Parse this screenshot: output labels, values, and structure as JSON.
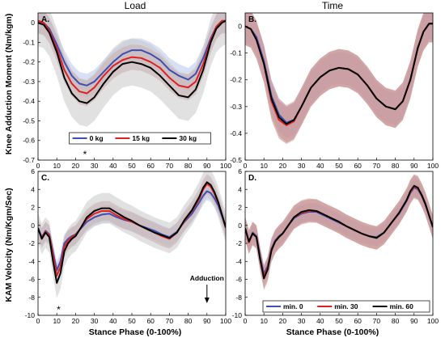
{
  "column_titles": {
    "left": "Load",
    "right": "Time"
  },
  "ylabel_top": "Knee Adduction Moment (Nm/kgm)",
  "ylabel_bottom": "KAM Velocity (Nm/Kgm/Sec)",
  "xlabel": "Stance Phase (0-100%)",
  "colors": {
    "blue": "#3c4fb4",
    "red": "#e02020",
    "black": "#000000",
    "band_blue": "#b8c6ec",
    "band_red": "#c88f8f",
    "band_gray": "#c8c8c8"
  },
  "chart_data": [
    {
      "panel": "A.",
      "type": "line",
      "xlim": [
        0,
        100
      ],
      "ylim": [
        -0.7,
        0.05
      ],
      "xticks": [
        "0",
        "10",
        "20",
        "30",
        "40",
        "50",
        "60",
        "70",
        "80",
        "90",
        "100"
      ],
      "yticks": [
        "0",
        "-0.1",
        "-0.2",
        "-0.3",
        "-0.4",
        "-0.5",
        "-0.6",
        "-0.7"
      ],
      "annotation": "*",
      "annotation_x": 25,
      "legend_position": "bottom-center",
      "series": [
        {
          "name": "0 kg",
          "color": "blue",
          "band": "band_blue",
          "band_halfwidth": 0.06,
          "x": [
            0,
            3,
            6,
            10,
            14,
            18,
            22,
            26,
            30,
            35,
            40,
            45,
            50,
            55,
            60,
            65,
            70,
            75,
            80,
            84,
            88,
            92,
            95,
            98,
            100
          ],
          "y": [
            0.01,
            0.0,
            -0.03,
            -0.11,
            -0.2,
            -0.27,
            -0.31,
            -0.32,
            -0.3,
            -0.25,
            -0.2,
            -0.16,
            -0.14,
            -0.14,
            -0.16,
            -0.19,
            -0.24,
            -0.27,
            -0.29,
            -0.26,
            -0.18,
            -0.08,
            -0.02,
            0.01,
            0.01
          ]
        },
        {
          "name": "15 kg",
          "color": "red",
          "band": "band_red",
          "band_halfwidth": 0.065,
          "x": [
            0,
            3,
            6,
            10,
            14,
            18,
            22,
            26,
            30,
            35,
            40,
            45,
            50,
            55,
            60,
            65,
            70,
            75,
            80,
            84,
            88,
            92,
            95,
            98,
            100
          ],
          "y": [
            0.01,
            0.0,
            -0.04,
            -0.13,
            -0.24,
            -0.31,
            -0.35,
            -0.36,
            -0.33,
            -0.27,
            -0.22,
            -0.19,
            -0.175,
            -0.18,
            -0.2,
            -0.23,
            -0.28,
            -0.32,
            -0.33,
            -0.3,
            -0.21,
            -0.09,
            -0.02,
            0.01,
            0.01
          ]
        },
        {
          "name": "30 kg",
          "color": "black",
          "band": "band_gray",
          "band_halfwidth": 0.12,
          "x": [
            0,
            3,
            6,
            10,
            14,
            18,
            22,
            26,
            30,
            35,
            40,
            45,
            50,
            55,
            60,
            65,
            70,
            75,
            80,
            84,
            88,
            92,
            95,
            98,
            100
          ],
          "y": [
            0.0,
            -0.01,
            -0.05,
            -0.15,
            -0.28,
            -0.36,
            -0.4,
            -0.41,
            -0.38,
            -0.31,
            -0.25,
            -0.21,
            -0.2,
            -0.21,
            -0.23,
            -0.27,
            -0.32,
            -0.37,
            -0.38,
            -0.34,
            -0.24,
            -0.1,
            -0.03,
            0.0,
            0.01
          ]
        }
      ]
    },
    {
      "panel": "B.",
      "type": "line",
      "xlim": [
        0,
        100
      ],
      "ylim": [
        -0.5,
        0.05
      ],
      "xticks": [
        "0",
        "10",
        "20",
        "30",
        "40",
        "50",
        "60",
        "70",
        "80",
        "90",
        "100"
      ],
      "yticks": [
        "0",
        "-0.1",
        "-0.2",
        "-0.3",
        "-0.4",
        "-0.5"
      ],
      "series": [
        {
          "name": "min. 0",
          "color": "blue",
          "band": "band_blue",
          "band_halfwidth": 0.06,
          "x": [
            0,
            3,
            6,
            10,
            14,
            18,
            22,
            26,
            30,
            35,
            40,
            45,
            50,
            55,
            60,
            65,
            70,
            75,
            80,
            84,
            88,
            92,
            95,
            98,
            100
          ],
          "y": [
            0.0,
            -0.01,
            -0.04,
            -0.13,
            -0.26,
            -0.33,
            -0.36,
            -0.35,
            -0.3,
            -0.23,
            -0.19,
            -0.165,
            -0.155,
            -0.16,
            -0.18,
            -0.22,
            -0.27,
            -0.3,
            -0.31,
            -0.28,
            -0.2,
            -0.08,
            -0.02,
            0.01,
            0.01
          ]
        },
        {
          "name": "min. 30",
          "color": "red",
          "band": "band_red",
          "band_halfwidth": 0.07,
          "x": [
            0,
            3,
            6,
            10,
            14,
            18,
            22,
            26,
            30,
            35,
            40,
            45,
            50,
            55,
            60,
            65,
            70,
            75,
            80,
            84,
            88,
            92,
            95,
            98,
            100
          ],
          "y": [
            0.0,
            -0.01,
            -0.05,
            -0.14,
            -0.28,
            -0.35,
            -0.37,
            -0.355,
            -0.3,
            -0.23,
            -0.19,
            -0.165,
            -0.155,
            -0.16,
            -0.18,
            -0.22,
            -0.27,
            -0.3,
            -0.31,
            -0.28,
            -0.2,
            -0.08,
            -0.02,
            0.01,
            0.01
          ]
        },
        {
          "name": "min. 60",
          "color": "black",
          "band": "band_red",
          "band_halfwidth": 0.07,
          "x": [
            0,
            3,
            6,
            10,
            14,
            18,
            22,
            26,
            30,
            35,
            40,
            45,
            50,
            55,
            60,
            65,
            70,
            75,
            80,
            84,
            88,
            92,
            95,
            98,
            100
          ],
          "y": [
            0.0,
            -0.01,
            -0.05,
            -0.14,
            -0.27,
            -0.34,
            -0.365,
            -0.35,
            -0.3,
            -0.23,
            -0.19,
            -0.165,
            -0.155,
            -0.16,
            -0.18,
            -0.22,
            -0.27,
            -0.3,
            -0.31,
            -0.28,
            -0.2,
            -0.08,
            -0.02,
            0.01,
            0.01
          ]
        }
      ]
    },
    {
      "panel": "C.",
      "type": "line",
      "xlim": [
        0,
        100
      ],
      "ylim": [
        -10,
        6
      ],
      "xticks": [
        "0",
        "10",
        "20",
        "30",
        "40",
        "50",
        "60",
        "70",
        "80",
        "90",
        "100"
      ],
      "yticks": [
        "6",
        "4",
        "2",
        "0",
        "-2",
        "-4",
        "-6",
        "-8",
        "-10"
      ],
      "annotation": "*",
      "annotation_x": 11,
      "annotation_text": "Adduction",
      "annotation_text_x": 90,
      "series": [
        {
          "name": "0 kg",
          "color": "blue",
          "band": "band_blue",
          "band_halfwidth": 1.0,
          "x": [
            0,
            2,
            4,
            6,
            8,
            10,
            12,
            14,
            16,
            18,
            20,
            23,
            26,
            30,
            34,
            38,
            42,
            46,
            50,
            54,
            58,
            62,
            66,
            70,
            74,
            78,
            82,
            86,
            88,
            90,
            92,
            94,
            96,
            98,
            100
          ],
          "y": [
            -0.3,
            -1.3,
            -0.6,
            -1.0,
            -3.0,
            -5.0,
            -4.0,
            -2.0,
            -1.5,
            -1.2,
            -1.0,
            -0.3,
            0.4,
            0.9,
            1.2,
            1.3,
            0.9,
            0.6,
            0.4,
            0.0,
            -0.3,
            -0.6,
            -1.0,
            -1.3,
            -0.7,
            0.4,
            1.3,
            2.6,
            3.3,
            3.8,
            3.6,
            3.0,
            2.2,
            1.0,
            -0.3
          ]
        },
        {
          "name": "15 kg",
          "color": "red",
          "band": "band_red",
          "band_halfwidth": 1.1,
          "x": [
            0,
            2,
            4,
            6,
            8,
            10,
            12,
            14,
            16,
            18,
            20,
            23,
            26,
            30,
            34,
            38,
            42,
            46,
            50,
            54,
            58,
            62,
            66,
            70,
            74,
            78,
            82,
            86,
            88,
            90,
            92,
            94,
            96,
            98,
            100
          ],
          "y": [
            -0.4,
            -1.4,
            -0.7,
            -1.1,
            -3.3,
            -5.6,
            -4.6,
            -2.4,
            -1.7,
            -1.3,
            -1.1,
            -0.2,
            0.7,
            1.3,
            1.6,
            1.6,
            1.1,
            0.7,
            0.4,
            0.0,
            -0.4,
            -0.8,
            -1.2,
            -1.5,
            -0.8,
            0.5,
            1.6,
            3.0,
            4.0,
            4.6,
            4.3,
            3.5,
            2.5,
            1.2,
            -0.3
          ]
        },
        {
          "name": "30 kg",
          "color": "black",
          "band": "band_gray",
          "band_halfwidth": 1.7,
          "x": [
            0,
            2,
            4,
            6,
            8,
            10,
            12,
            14,
            16,
            18,
            20,
            23,
            26,
            30,
            34,
            38,
            42,
            46,
            50,
            54,
            58,
            62,
            66,
            70,
            74,
            78,
            82,
            86,
            88,
            90,
            92,
            94,
            96,
            98,
            100
          ],
          "y": [
            -0.3,
            -1.5,
            -0.8,
            -1.3,
            -4.0,
            -6.4,
            -5.3,
            -2.9,
            -2.0,
            -1.5,
            -1.2,
            -0.2,
            0.9,
            1.6,
            1.9,
            1.9,
            1.4,
            0.9,
            0.5,
            0.0,
            -0.4,
            -0.8,
            -1.1,
            -1.4,
            -0.8,
            0.6,
            1.7,
            3.2,
            4.2,
            4.8,
            4.5,
            3.7,
            2.6,
            1.2,
            -0.2
          ]
        }
      ]
    },
    {
      "panel": "D.",
      "type": "line",
      "xlim": [
        0,
        100
      ],
      "ylim": [
        -10,
        6
      ],
      "xticks": [
        "0",
        "10",
        "20",
        "30",
        "40",
        "50",
        "60",
        "70",
        "80",
        "90",
        "100"
      ],
      "yticks": [
        "6",
        "4",
        "2",
        "0",
        "-2",
        "-4",
        "-6",
        "-8",
        "-10"
      ],
      "legend_position": "bottom-right",
      "series": [
        {
          "name": "min. 0",
          "color": "blue",
          "band": "band_blue",
          "band_halfwidth": 1.0,
          "x": [
            0,
            2,
            4,
            6,
            8,
            10,
            12,
            14,
            16,
            18,
            20,
            23,
            26,
            30,
            34,
            38,
            42,
            46,
            50,
            54,
            58,
            62,
            66,
            70,
            74,
            78,
            82,
            86,
            88,
            90,
            92,
            94,
            96,
            98,
            100
          ],
          "y": [
            -0.3,
            -1.8,
            -0.8,
            -1.2,
            -3.5,
            -5.4,
            -4.5,
            -2.6,
            -1.7,
            -1.2,
            -0.9,
            0.0,
            0.8,
            1.3,
            1.5,
            1.5,
            1.1,
            0.7,
            0.3,
            -0.1,
            -0.5,
            -0.9,
            -1.2,
            -1.3,
            -0.8,
            0.3,
            1.3,
            2.7,
            3.6,
            4.2,
            4.0,
            3.3,
            2.3,
            1.1,
            -0.2
          ]
        },
        {
          "name": "min. 30",
          "color": "red",
          "band": "band_red",
          "band_halfwidth": 1.3,
          "x": [
            0,
            2,
            4,
            6,
            8,
            10,
            12,
            14,
            16,
            18,
            20,
            23,
            26,
            30,
            34,
            38,
            42,
            46,
            50,
            54,
            58,
            62,
            66,
            70,
            74,
            78,
            82,
            86,
            88,
            90,
            92,
            94,
            96,
            98,
            100
          ],
          "y": [
            -0.4,
            -1.9,
            -0.9,
            -1.3,
            -3.7,
            -5.7,
            -4.7,
            -2.7,
            -1.8,
            -1.3,
            -0.9,
            0.0,
            0.9,
            1.4,
            1.6,
            1.6,
            1.2,
            0.8,
            0.4,
            -0.1,
            -0.5,
            -0.9,
            -1.2,
            -1.4,
            -0.8,
            0.3,
            1.4,
            2.8,
            3.7,
            4.3,
            4.1,
            3.4,
            2.4,
            1.1,
            -0.2
          ]
        },
        {
          "name": "min. 60",
          "color": "black",
          "band": "band_red",
          "band_halfwidth": 1.3,
          "x": [
            0,
            2,
            4,
            6,
            8,
            10,
            12,
            14,
            16,
            18,
            20,
            23,
            26,
            30,
            34,
            38,
            42,
            46,
            50,
            54,
            58,
            62,
            66,
            70,
            74,
            78,
            82,
            86,
            88,
            90,
            92,
            94,
            96,
            98,
            100
          ],
          "y": [
            -0.3,
            -1.8,
            -0.9,
            -1.3,
            -3.8,
            -5.9,
            -4.9,
            -2.8,
            -1.8,
            -1.3,
            -0.9,
            0.0,
            0.9,
            1.5,
            1.7,
            1.6,
            1.2,
            0.8,
            0.4,
            -0.1,
            -0.5,
            -0.9,
            -1.2,
            -1.4,
            -0.8,
            0.3,
            1.4,
            2.8,
            3.8,
            4.4,
            4.2,
            3.4,
            2.4,
            1.1,
            -0.2
          ]
        }
      ]
    }
  ]
}
